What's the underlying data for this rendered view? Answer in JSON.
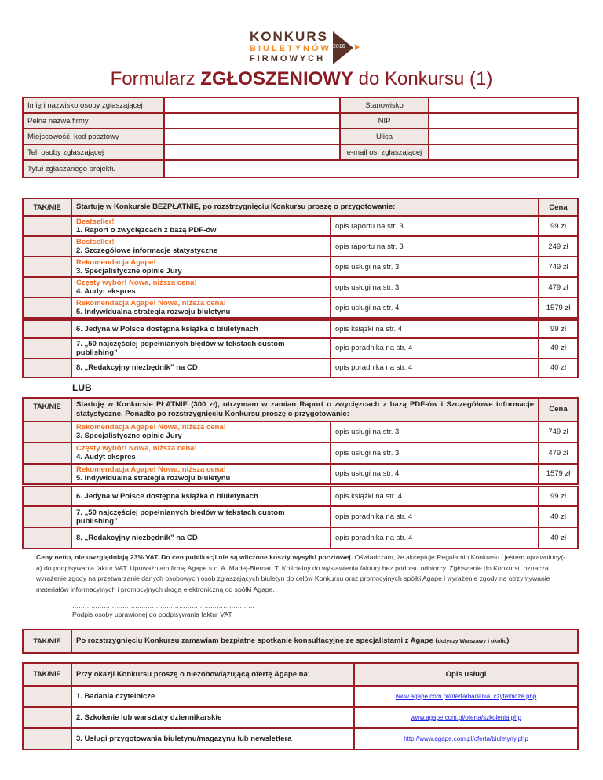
{
  "logo": {
    "line1": "KONKURS",
    "line2": "BIULETYNÓW",
    "line3": "FIRMOWYCH",
    "year": "2016",
    "colors": {
      "dark": "#5a3326",
      "orange": "#f58a1f"
    }
  },
  "title": {
    "pre": "Formularz ",
    "bold": "ZGŁOSZENIOWY",
    "post": " do Konkursu (1)"
  },
  "colors": {
    "border": "#9b1c24",
    "shade": "#efe8e4",
    "accent": "#f26d21",
    "link": "#1a1aee"
  },
  "contact": {
    "rows": [
      {
        "label": "Imię i nazwisko osoby zgłaszającej",
        "label2": "Stanowisko"
      },
      {
        "label": "Pełna nazwa firmy",
        "label2": "NIP"
      },
      {
        "label": "Miejscowość, kod pocztowy",
        "label2": "Ulica"
      },
      {
        "label": "Tel. osoby zgłaszającej",
        "label2": "e-mail  os. zgłaszającej"
      }
    ],
    "project_label": "Tytuł zgłaszanego projektu"
  },
  "free": {
    "taknie": "TAK/NIE",
    "header": "Startuję w Konkursie BEZPŁATNIE, po rozstrzygnięciu Konkursu proszę o przygotowanie:",
    "price_header": "Cena",
    "items": [
      {
        "tag": "Bestseller!",
        "name": "1. Raport o zwycięzcach z bazą PDF-ów",
        "desc": "opis raportu na str. 3",
        "price": "99 zł"
      },
      {
        "tag": "Bestseller!",
        "name": "2. Szczegółowe informacje statystyczne",
        "desc": "opis raportu na str. 3",
        "price": "249 zł"
      },
      {
        "tag": "Rekomendacja Agape!",
        "name": "3. Specjalistyczne opinie Jury",
        "desc": "opis usługi na str. 3",
        "price": "749 zł"
      },
      {
        "tag": "Częsty wybór! Nowa, niższa cena!",
        "name": "4. Audyt ekspres",
        "desc": "opis usługi na str. 3",
        "price": "479 zł"
      },
      {
        "tag": "Rekomendacja Agape! Nowa, niższa cena!",
        "name": "5. Indywidualna strategia rozwoju biuletynu",
        "desc": "opis usługi na str. 4",
        "price": "1579 zł"
      }
    ],
    "extras": [
      {
        "name": "6. Jedyna w Polsce dostępna książka o biuletynach",
        "desc": "opis książki na str. 4",
        "price": "99 zł"
      },
      {
        "name": "7. „50 najczęściej popełnianych błędów w tekstach custom publishing”",
        "desc": "opis poradnika na str. 4",
        "price": "40 zł"
      },
      {
        "name": "8. „Redakcyjny niezbędnik” na CD",
        "desc": "opis poradnika na str. 4",
        "price": "40 zł"
      }
    ]
  },
  "or_label": "LUB",
  "paid": {
    "taknie": "TAK/NIE",
    "header": "Startuję w Konkursie PŁATNIE (300 zł), otrzymam w zamian Raport o zwycięzcach z bazą  PDF-ów i Szczegółowe informacje statystyczne. Ponadto po rozstrzygnięciu Konkursu proszę o przygotowanie:",
    "price_header": "Cena",
    "items": [
      {
        "tag": "Rekomendacja Agape! Nowa, niższa cena!",
        "name": "3. Specjalistyczne opinie Jury",
        "desc": "opis usługi na str. 3",
        "price": "749 zł"
      },
      {
        "tag": "Częsty wybór! Nowa, niższa cena!",
        "name": "4. Audyt ekspres",
        "desc": "opis usługi na str. 3",
        "price": "479 zł"
      },
      {
        "tag": "Rekomendacja Agape! Nowa, niższa cena!",
        "name": "5. Indywidualna strategia rozwoju biuletynu",
        "desc": "opis usługi na str. 4",
        "price": "1579 zł"
      }
    ],
    "extras": [
      {
        "name": "6. Jedyna w Polsce dostępna książka o biuletynach",
        "desc": "opis książki na str. 4",
        "price": "99 zł"
      },
      {
        "name": "7. „50 najczęściej popełnianych błędów w tekstach custom publishing”",
        "desc": "opis poradnika na str. 4",
        "price": "40 zł"
      },
      {
        "name": "8. „Redakcyjny niezbędnik” na CD",
        "desc": "opis poradnika na str. 4",
        "price": "40 zł"
      }
    ]
  },
  "note": {
    "bold": "Ceny netto, nie uwzględniają 23% VAT. Do cen publikacji nie są wliczone koszty wysyłki pocztowej.",
    "text": " Oświadczam, że akceptuję Regulamin Konkursu i jestem uprawniony(-a) do podpisywania faktur VAT. Upoważniam firmę Agape s.c. A. Madej-Biernat, T. Kościelny do wystawienia faktury bez podpisu odbiorcy. Zgłoszenie do Konkursu oznacza wyrażenie zgody na przetwarzanie danych osobowych osób zgłaszających biuletyn do celów Konkursu oraz promocyjnych spółki Agape i  wyrażenie zgody na otrzymywanie materiałów informacyjnych i promocyjnych drogą elektroniczną od spółki Agape."
  },
  "signature": {
    "dots": "……………………………………………………………………………",
    "label": "Podpis osoby uprawionej do podpisywania faktur VAT"
  },
  "consult": {
    "taknie": "TAK/NIE",
    "text": "Po rozstrzygnięciu Konkursu zamawiam bezpłatne spotkanie konsultacyjne ze specjalistami z Agape (",
    "small": "dotyczy Warszawy i okolic",
    "close": ")"
  },
  "offer": {
    "taknie": "TAK/NIE",
    "header": "Przy okazji Konkursu proszę o niezobowiązującą ofertę Agape na:",
    "desc_header": "Opis usługi",
    "items": [
      {
        "name": "1. Badania czytelnicze",
        "link": "www.agape.com.pl/oferta/badania_czytelnicze.php"
      },
      {
        "name": "2. Szkolenie lub warsztaty dziennikarskie",
        "link": "www.agape.com.pl/oferta/szkolenia.php"
      },
      {
        "name": "3. Usługi przygotowania biuletynu/magazynu lub newslettera",
        "link": "http://www.agape.com.pl/oferta/biuletyny.php"
      }
    ]
  }
}
